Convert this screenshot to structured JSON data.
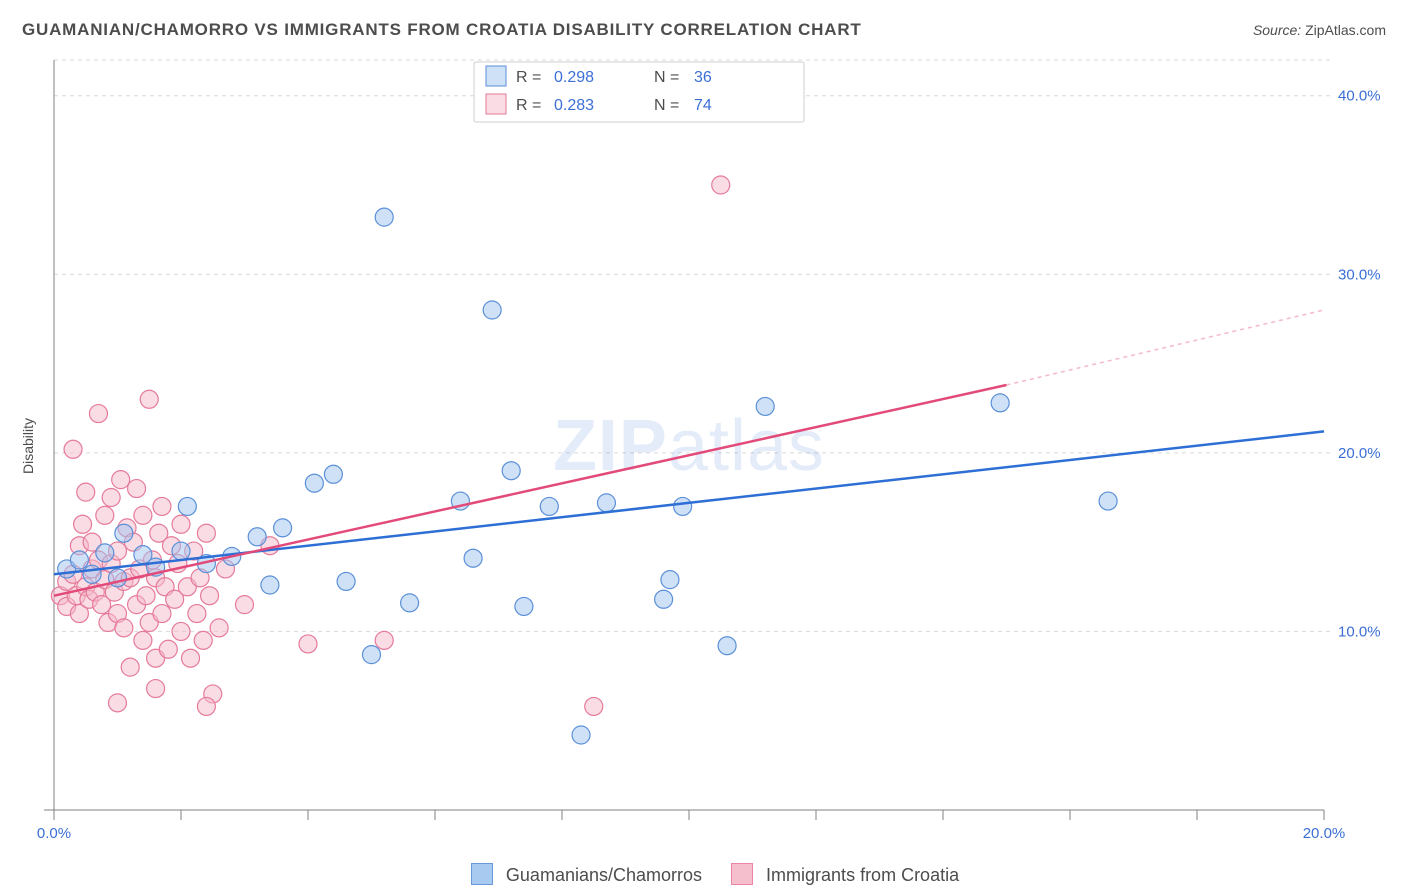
{
  "title": "GUAMANIAN/CHAMORRO VS IMMIGRANTS FROM CROATIA DISABILITY CORRELATION CHART",
  "source_label": "Source: ",
  "source_value": "ZipAtlas.com",
  "y_axis_label": "Disability",
  "watermark_bold": "ZIP",
  "watermark_rest": "atlas",
  "chart": {
    "type": "scatter",
    "background_color": "#ffffff",
    "grid_color": "#d9d9d9",
    "axis_color": "#808080",
    "tick_label_color": "#3b6fd6",
    "text_color": "#4d4d4d",
    "xlim": [
      0,
      20
    ],
    "ylim": [
      0,
      42
    ],
    "y_gridlines": [
      10,
      20,
      30,
      40
    ],
    "y_tick_labels": [
      "10.0%",
      "20.0%",
      "30.0%",
      "40.0%"
    ],
    "x_tick_positions": [
      0,
      2,
      4,
      6,
      8,
      10,
      12,
      14,
      16,
      18,
      20
    ],
    "x_tick_labels_shown": {
      "0": "0.0%",
      "20": "20.0%"
    },
    "marker_radius": 9,
    "series": [
      {
        "id": "guamanians",
        "label": "Guamanians/Chamorros",
        "fill": "#9fc4ef",
        "stroke": "#5b90d8",
        "r_label": "R = ",
        "r_value": "0.298",
        "n_label": "N = ",
        "n_value": "36",
        "trend": {
          "x1": 0,
          "y1": 13.2,
          "x2": 20,
          "y2": 21.2,
          "color": "#2e6fd6"
        },
        "points": [
          [
            0.2,
            13.5
          ],
          [
            0.4,
            14.0
          ],
          [
            0.6,
            13.2
          ],
          [
            0.8,
            14.4
          ],
          [
            1.0,
            13.0
          ],
          [
            1.1,
            15.5
          ],
          [
            1.4,
            14.3
          ],
          [
            1.6,
            13.6
          ],
          [
            2.0,
            14.5
          ],
          [
            2.1,
            17.0
          ],
          [
            2.4,
            13.8
          ],
          [
            2.8,
            14.2
          ],
          [
            3.2,
            15.3
          ],
          [
            3.4,
            12.6
          ],
          [
            3.6,
            15.8
          ],
          [
            4.1,
            18.3
          ],
          [
            4.4,
            18.8
          ],
          [
            4.6,
            12.8
          ],
          [
            5.0,
            8.7
          ],
          [
            5.2,
            33.2
          ],
          [
            5.6,
            11.6
          ],
          [
            6.4,
            17.3
          ],
          [
            6.6,
            14.1
          ],
          [
            6.9,
            28.0
          ],
          [
            7.4,
            11.4
          ],
          [
            7.2,
            19.0
          ],
          [
            7.8,
            17.0
          ],
          [
            8.3,
            4.2
          ],
          [
            8.7,
            17.2
          ],
          [
            9.6,
            11.8
          ],
          [
            9.7,
            12.9
          ],
          [
            9.9,
            17.0
          ],
          [
            10.6,
            9.2
          ],
          [
            11.2,
            22.6
          ],
          [
            14.9,
            22.8
          ],
          [
            16.6,
            17.3
          ]
        ]
      },
      {
        "id": "croatia",
        "label": "Immigrants from Croatia",
        "fill": "#f4b9c9",
        "stroke": "#e67a9a",
        "r_label": "R = ",
        "r_value": "0.283",
        "n_label": "N = ",
        "n_value": "74",
        "trend_solid": {
          "x1": 0,
          "y1": 12.0,
          "x2": 15,
          "y2": 23.8,
          "color": "#e24a7a"
        },
        "trend_dash": {
          "x1": 15,
          "y1": 23.8,
          "x2": 20,
          "y2": 28.0,
          "color": "#f4b9c9"
        },
        "points": [
          [
            0.1,
            12.0
          ],
          [
            0.2,
            12.8
          ],
          [
            0.2,
            11.4
          ],
          [
            0.3,
            13.2
          ],
          [
            0.3,
            20.2
          ],
          [
            0.35,
            12.0
          ],
          [
            0.4,
            14.8
          ],
          [
            0.4,
            11.0
          ],
          [
            0.45,
            16.0
          ],
          [
            0.5,
            12.5
          ],
          [
            0.5,
            17.8
          ],
          [
            0.55,
            11.8
          ],
          [
            0.6,
            13.5
          ],
          [
            0.6,
            15.0
          ],
          [
            0.65,
            12.2
          ],
          [
            0.7,
            14.0
          ],
          [
            0.7,
            22.2
          ],
          [
            0.75,
            11.5
          ],
          [
            0.8,
            12.9
          ],
          [
            0.8,
            16.5
          ],
          [
            0.85,
            10.5
          ],
          [
            0.9,
            13.8
          ],
          [
            0.9,
            17.5
          ],
          [
            0.95,
            12.2
          ],
          [
            1.0,
            11.0
          ],
          [
            1.0,
            14.5
          ],
          [
            1.05,
            18.5
          ],
          [
            1.1,
            12.8
          ],
          [
            1.1,
            10.2
          ],
          [
            1.15,
            15.8
          ],
          [
            1.2,
            13.0
          ],
          [
            1.2,
            8.0
          ],
          [
            1.25,
            15.0
          ],
          [
            1.3,
            11.5
          ],
          [
            1.3,
            18.0
          ],
          [
            1.35,
            13.5
          ],
          [
            1.4,
            9.5
          ],
          [
            1.4,
            16.5
          ],
          [
            1.45,
            12.0
          ],
          [
            1.5,
            23.0
          ],
          [
            1.5,
            10.5
          ],
          [
            1.55,
            14.0
          ],
          [
            1.6,
            13.0
          ],
          [
            1.6,
            8.5
          ],
          [
            1.65,
            15.5
          ],
          [
            1.7,
            11.0
          ],
          [
            1.7,
            17.0
          ],
          [
            1.75,
            12.5
          ],
          [
            1.8,
            9.0
          ],
          [
            1.85,
            14.8
          ],
          [
            1.9,
            11.8
          ],
          [
            1.95,
            13.8
          ],
          [
            2.0,
            10.0
          ],
          [
            2.0,
            16.0
          ],
          [
            2.1,
            12.5
          ],
          [
            2.15,
            8.5
          ],
          [
            2.2,
            14.5
          ],
          [
            2.25,
            11.0
          ],
          [
            2.3,
            13.0
          ],
          [
            2.35,
            9.5
          ],
          [
            2.4,
            15.5
          ],
          [
            2.45,
            12.0
          ],
          [
            2.5,
            6.5
          ],
          [
            2.6,
            10.2
          ],
          [
            2.7,
            13.5
          ],
          [
            1.6,
            6.8
          ],
          [
            2.4,
            5.8
          ],
          [
            3.0,
            11.5
          ],
          [
            3.4,
            14.8
          ],
          [
            4.0,
            9.3
          ],
          [
            5.2,
            9.5
          ],
          [
            8.5,
            5.8
          ],
          [
            10.5,
            35.0
          ],
          [
            1.0,
            6.0
          ]
        ]
      }
    ]
  },
  "bottom_legend": [
    {
      "label": "Guamanians/Chamorros",
      "fill": "#9fc4ef",
      "stroke": "#5b90d8"
    },
    {
      "label": "Immigrants from Croatia",
      "fill": "#f4b9c9",
      "stroke": "#e67a9a"
    }
  ]
}
